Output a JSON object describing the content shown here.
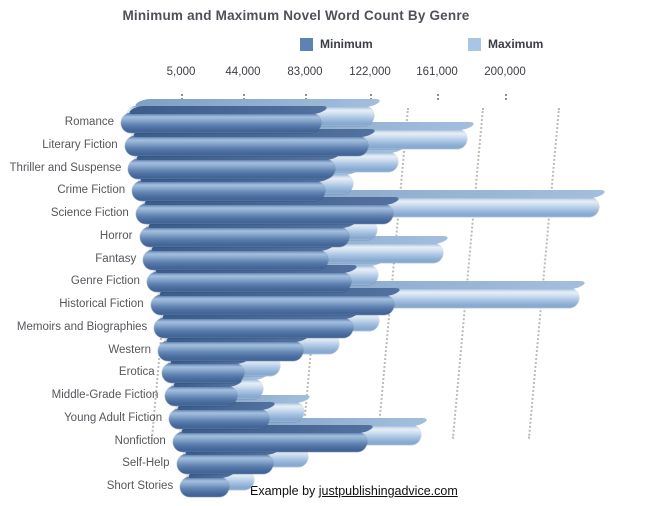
{
  "header": {
    "title": "Minimum and Maximum Novel Word Count By Genre"
  },
  "legend": {
    "items": [
      {
        "label": "Minimum",
        "color": "#5f82b4"
      },
      {
        "label": "Maximum",
        "color": "#a9c5e5"
      }
    ]
  },
  "footer": {
    "prefix": "Example by ",
    "link_text": "justpublishingadvice.com"
  },
  "chart_data": {
    "type": "bar",
    "orientation": "horizontal",
    "style": "3d",
    "title": "Minimum and Maximum Novel Word Count By Genre",
    "legend_position": "top",
    "grid": "dotted-vertical",
    "background": "#ffffff",
    "x_tick_labels": [
      "5,000",
      "44,000",
      "83,000",
      "122,000",
      "161,000",
      "200,000"
    ],
    "x_tick_values": [
      5000,
      44000,
      83000,
      122000,
      161000,
      200000
    ],
    "xlim": [
      0,
      200000
    ],
    "categories": [
      "Romance",
      "Literary Fiction",
      "Thriller and Suspense",
      "Crime Fiction",
      "Science Fiction",
      "Horror",
      "Fantasy",
      "Genre Fiction",
      "Historical Fiction",
      "Memoirs and Biographies",
      "Western",
      "Erotica",
      "Middle-Grade Fiction",
      "Young Adult Fiction",
      "Nonfiction",
      "Self-Help",
      "Short Stories"
    ],
    "series": [
      {
        "name": "Minimum",
        "color": "#5f82b4",
        "values": [
          80000,
          100000,
          85000,
          80000,
          110000,
          90000,
          80000,
          90000,
          110000,
          90000,
          65000,
          35000,
          30000,
          45000,
          95000,
          45000,
          20000
        ]
      },
      {
        "name": "Maximum",
        "color": "#a9c5e5",
        "values": [
          100000,
          140000,
          110000,
          90000,
          200000,
          100000,
          130000,
          100000,
          195000,
          100000,
          80000,
          50000,
          40000,
          60000,
          120000,
          60000,
          30000
        ]
      }
    ]
  }
}
